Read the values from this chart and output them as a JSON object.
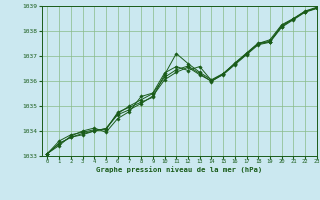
{
  "title": "Graphe pression niveau de la mer (hPa)",
  "bg_color": "#cbe8f0",
  "grid_color": "#88bb88",
  "line_color": "#1a5c1a",
  "marker_color": "#1a5c1a",
  "xlim": [
    -0.5,
    23
  ],
  "ylim": [
    1033,
    1039
  ],
  "xticks": [
    0,
    1,
    2,
    3,
    4,
    5,
    6,
    7,
    8,
    9,
    10,
    11,
    12,
    13,
    14,
    15,
    16,
    17,
    18,
    19,
    20,
    21,
    22,
    23
  ],
  "yticks": [
    1033,
    1034,
    1035,
    1036,
    1037,
    1038,
    1039
  ],
  "series": [
    [
      1033.1,
      1033.6,
      1033.85,
      1033.95,
      1034.05,
      1034.05,
      1034.75,
      1034.95,
      1035.15,
      1035.35,
      1036.25,
      1037.1,
      1036.7,
      1036.35,
      1036.05,
      1036.3,
      1036.7,
      1037.1,
      1037.5,
      1037.65,
      1038.25,
      1038.5,
      1038.8,
      1038.95
    ],
    [
      1033.1,
      1033.5,
      1033.75,
      1033.9,
      1034.0,
      1034.1,
      1034.65,
      1034.85,
      1035.1,
      1035.4,
      1036.05,
      1036.35,
      1036.55,
      1036.25,
      1036.0,
      1036.25,
      1036.65,
      1037.05,
      1037.45,
      1037.55,
      1038.15,
      1038.45,
      1038.75,
      1038.9
    ],
    [
      1033.1,
      1033.5,
      1033.75,
      1033.85,
      1034.0,
      1034.1,
      1034.7,
      1035.0,
      1035.25,
      1035.5,
      1036.15,
      1036.45,
      1036.6,
      1036.3,
      1035.98,
      1036.28,
      1036.68,
      1037.08,
      1037.48,
      1037.58,
      1038.18,
      1038.48,
      1038.78,
      1038.92
    ],
    [
      1033.1,
      1033.42,
      1033.8,
      1034.0,
      1034.12,
      1033.95,
      1034.5,
      1034.78,
      1035.38,
      1035.52,
      1036.32,
      1036.58,
      1036.42,
      1036.58,
      1036.02,
      1036.28,
      1036.72,
      1037.12,
      1037.52,
      1037.58,
      1038.22,
      1038.48,
      1038.78,
      1038.92
    ]
  ]
}
